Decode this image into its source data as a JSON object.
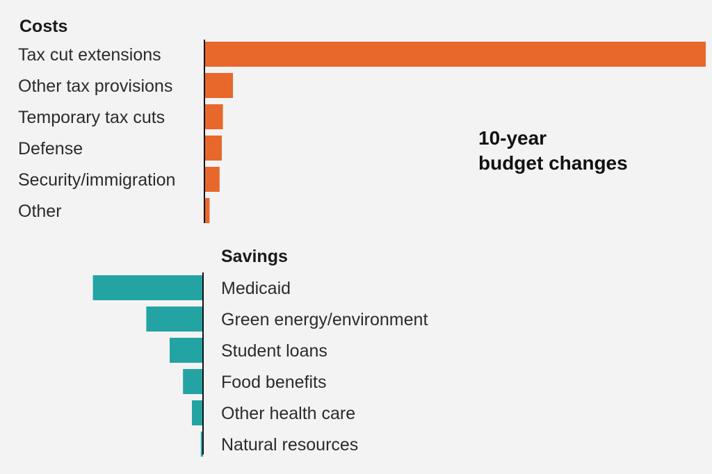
{
  "chart_data": [
    {
      "type": "bar",
      "title": "Costs",
      "categories": [
        "Tax cut extensions",
        "Other tax provisions",
        "Temporary tax cuts",
        "Defense",
        "Security/immigration",
        "Other"
      ],
      "values": [
        4500,
        250,
        160,
        150,
        130,
        40
      ],
      "color": "#e8672a"
    },
    {
      "type": "bar",
      "title": "Savings",
      "categories": [
        "Medicaid",
        "Green energy/environment",
        "Student loans",
        "Food benefits",
        "Other health care",
        "Natural resources"
      ],
      "values": [
        -990,
        -510,
        -300,
        -180,
        -100,
        -20
      ],
      "color": "#24a3a3"
    }
  ],
  "annotation": [
    "10-year",
    "budget changes"
  ]
}
